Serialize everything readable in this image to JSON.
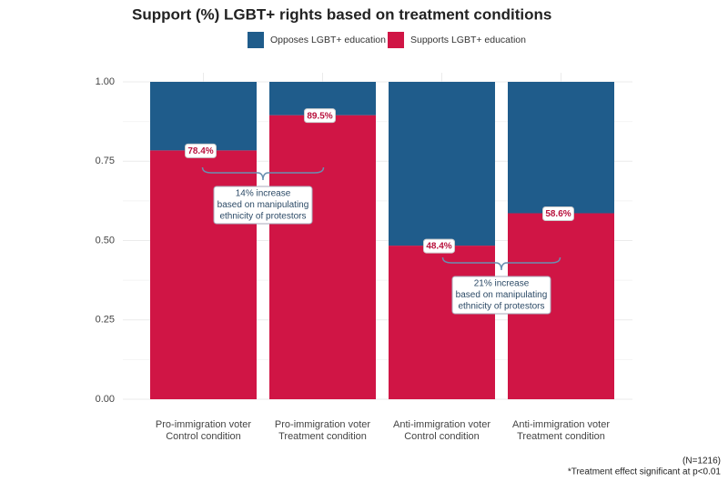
{
  "chart_data": {
    "type": "stacked_bar",
    "title": "Support (%) LGBT+ rights based on treatment conditions",
    "categories": [
      [
        "Pro-immigration voter",
        "Control condition"
      ],
      [
        "Pro-immigration voter",
        "Treatment condition"
      ],
      [
        "Anti-immigration voter",
        "Control condition"
      ],
      [
        "Anti-immigration voter",
        "Treatment condition"
      ]
    ],
    "series": [
      {
        "name": "Supports LGBT+ education",
        "color": "#d01545",
        "values": [
          0.784,
          0.895,
          0.484,
          0.586
        ],
        "value_labels": [
          "78.4%",
          "89.5%",
          "48.4%",
          "58.6%"
        ]
      },
      {
        "name": "Opposes LGBT+ education",
        "color": "#1f5c8b",
        "values": [
          0.216,
          0.105,
          0.516,
          0.414
        ]
      }
    ],
    "legend_order": [
      "Opposes LGBT+ education",
      "Supports LGBT+ education"
    ],
    "ylim": [
      0,
      1
    ],
    "yticks": [
      {
        "value": 0,
        "label": "0.00"
      },
      {
        "value": 0.25,
        "label": "0.25"
      },
      {
        "value": 0.5,
        "label": "0.50"
      },
      {
        "value": 0.75,
        "label": "0.75"
      },
      {
        "value": 1,
        "label": "1.00"
      }
    ],
    "grid": true,
    "annotations": [
      [
        "14% increase",
        "based on manipulating",
        "ethnicity of protestors"
      ],
      [
        "21% increase",
        "based on manipulating",
        "ethnicity of protestors"
      ]
    ],
    "footnotes": [
      "(N=1216)",
      "*Treatment effect significant at p<0.01"
    ]
  }
}
